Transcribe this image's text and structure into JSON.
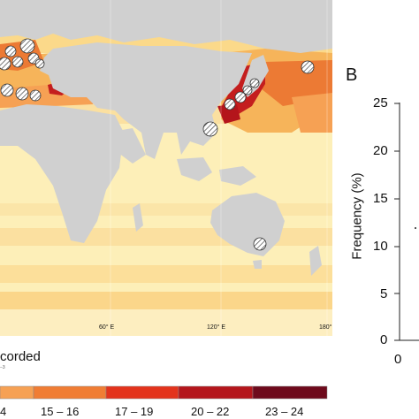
{
  "map": {
    "longitude_labels": [
      "60° E",
      "120° E",
      "180°"
    ],
    "legend_title": "corded",
    "legend_subtitle": "−3",
    "legend_bins": [
      {
        "label": "4",
        "color": "#f6a154"
      },
      {
        "label": "15 – 16",
        "color": "#f07d34"
      },
      {
        "label": "17 – 19",
        "color": "#e3331c"
      },
      {
        "label": "20 – 22",
        "color": "#b4151b"
      },
      {
        "label": "23 – 24",
        "color": "#6e0a1c"
      }
    ],
    "colors": {
      "land": "#d0d0d0",
      "ocean_light": "#fdefb8",
      "ocean_mid": "#fbd98a",
      "ocean_warm": "#f6b45a",
      "ocean_hot": "#ec7a34",
      "ocean_red": "#c41e1e"
    }
  },
  "panel_b": {
    "label": "B",
    "ylabel": "Frequency (%)",
    "y_ticks": [
      "25",
      "20",
      "15",
      "10",
      "5",
      "0"
    ],
    "x_tick": "0"
  }
}
